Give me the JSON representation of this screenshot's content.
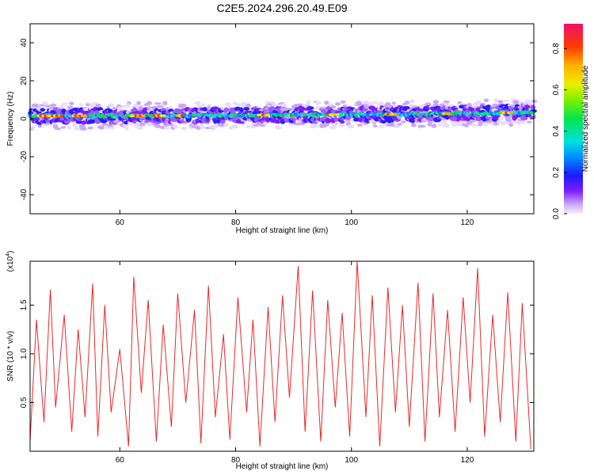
{
  "title": "C2E5.2024.296.20.49.E09",
  "chart_data": [
    {
      "type": "heatmap",
      "xlabel": "Height of straight line (km)",
      "ylabel": "Frequency (Hz)",
      "xlim": [
        44.5,
        131.5
      ],
      "ylim": [
        -50,
        50
      ],
      "xticks": [
        60,
        80,
        100,
        120
      ],
      "yticks": [
        -40,
        -20,
        0,
        20,
        40
      ],
      "description_of_data": "narrow band of normalized spectral amplitude centered near 0-5 Hz across all heights, with peak segments (values ~0.8-0.9) distributed along the band",
      "band_center_hz": [
        [
          45,
          1.5
        ],
        [
          60,
          1.5
        ],
        [
          80,
          1.8
        ],
        [
          100,
          2.2
        ],
        [
          120,
          2.8
        ],
        [
          131,
          3.5
        ]
      ],
      "band_half_width_hz": 4,
      "peak_segments_km": [
        [
          46,
          50
        ],
        [
          52,
          54
        ],
        [
          62,
          64
        ],
        [
          66,
          68
        ],
        [
          70,
          71
        ],
        [
          84,
          86
        ],
        [
          96,
          98
        ],
        [
          106,
          108
        ],
        [
          116,
          117
        ],
        [
          126,
          128
        ]
      ],
      "colorbar": {
        "label": "Normalized spectral amplitude",
        "range": [
          0.0,
          0.92
        ],
        "ticks": [
          0.0,
          0.2,
          0.4,
          0.6,
          0.8
        ],
        "tick_labels": [
          "0.0",
          "0.2",
          "0.4",
          "0.6",
          "0.8"
        ]
      }
    },
    {
      "type": "line",
      "xlabel": "Height of straight line (km)",
      "ylabel": "SNR (10 * v/v)",
      "y_multiplier_label": "(x10",
      "y_multiplier_exp": "4",
      "xlim": [
        44.5,
        131.5
      ],
      "ylim": [
        0,
        1.95
      ],
      "xticks": [
        60,
        80,
        100,
        120
      ],
      "yticks": [
        0.5,
        1.0,
        1.5
      ],
      "ytick_labels": [
        "0.5",
        "1.0",
        "1.5"
      ],
      "line_color": "#e8292a",
      "series": [
        {
          "x": [
            44.5,
            45.6,
            46.9,
            48.0,
            48.9,
            50.4,
            51.7,
            52.8,
            54.0,
            55.3,
            56.2,
            57.4,
            58.5,
            60.0,
            61.5,
            62.4,
            63.7,
            64.9,
            66.3,
            67.5,
            68.9,
            70.0,
            71.4,
            72.9,
            74.0,
            75.3,
            76.5,
            77.9,
            79.0,
            80.4,
            81.9,
            83.0,
            84.2,
            85.6,
            86.8,
            88.1,
            89.3,
            90.8,
            92.0,
            93.3,
            94.7,
            95.9,
            97.2,
            98.4,
            99.7,
            101.0,
            102.5,
            103.6,
            104.9,
            106.3,
            107.6,
            108.8,
            110.0,
            111.5,
            112.7,
            114.1,
            115.2,
            116.6,
            117.9,
            119.3,
            120.5,
            121.8,
            123.0,
            124.4,
            125.7,
            127.0,
            128.4,
            129.5,
            131.0
          ],
          "y": [
            0.1,
            1.35,
            0.3,
            1.66,
            0.45,
            1.4,
            0.2,
            1.25,
            0.35,
            1.72,
            0.15,
            1.5,
            0.4,
            1.05,
            0.05,
            1.79,
            0.6,
            1.55,
            0.1,
            1.3,
            0.25,
            1.62,
            0.5,
            1.45,
            0.08,
            1.7,
            0.35,
            1.2,
            0.12,
            1.58,
            0.4,
            1.35,
            0.05,
            1.48,
            0.3,
            1.6,
            0.55,
            1.9,
            0.2,
            1.65,
            0.1,
            1.55,
            0.45,
            1.42,
            0.15,
            1.95,
            0.35,
            1.6,
            0.05,
            1.68,
            0.4,
            1.5,
            0.25,
            1.73,
            0.1,
            1.62,
            0.35,
            1.45,
            0.2,
            1.58,
            0.5,
            1.88,
            0.15,
            1.4,
            0.3,
            1.63,
            0.1,
            1.52,
            0.02
          ]
        }
      ]
    }
  ]
}
